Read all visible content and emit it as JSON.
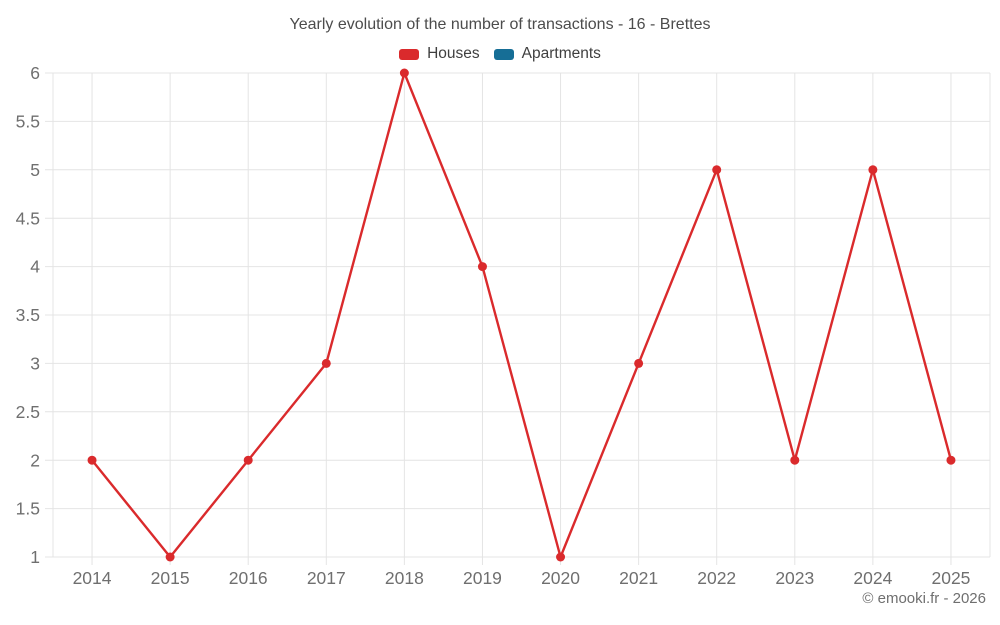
{
  "title": "Yearly evolution of the number of transactions - 16 - Brettes",
  "watermark": "© emooki.fr - 2026",
  "colors": {
    "houses": "#da2a2c",
    "apartments": "#166e96",
    "gridline": "#e4e4e4",
    "axis_label": "#6f6f6f",
    "title_text": "#4c4c4c",
    "legend_text": "#3f3f3f"
  },
  "legend": [
    {
      "label": "Houses",
      "color": "#da2a2c"
    },
    {
      "label": "Apartments",
      "color": "#166e96"
    }
  ],
  "chart_data": {
    "type": "line",
    "categories": [
      "2014",
      "2015",
      "2016",
      "2017",
      "2018",
      "2019",
      "2020",
      "2021",
      "2022",
      "2023",
      "2024",
      "2025"
    ],
    "series": [
      {
        "name": "Houses",
        "color": "#da2a2c",
        "values": [
          2,
          1,
          2,
          3,
          6,
          4,
          1,
          3,
          5,
          2,
          5,
          2
        ]
      },
      {
        "name": "Apartments",
        "color": "#166e96",
        "values": []
      }
    ],
    "title": "Yearly evolution of the number of transactions - 16 - Brettes",
    "xlabel": "",
    "ylabel": "",
    "ylim": [
      1,
      6
    ],
    "yticks": [
      "1",
      "1.5",
      "2",
      "2.5",
      "3",
      "3.5",
      "4",
      "4.5",
      "5",
      "5.5",
      "6"
    ],
    "grid": true,
    "legend_position": "top"
  }
}
